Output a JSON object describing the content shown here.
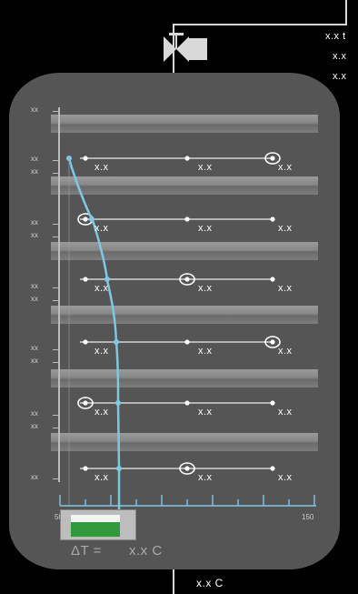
{
  "colors": {
    "vessel": "#555555",
    "curve": "#7ec8e3",
    "pipe": "#d8d8d8",
    "fill_bar": "#2e9a3c"
  },
  "valve": {
    "icon": "control-valve-icon"
  },
  "top_readouts": [
    "x.x t",
    "x.x",
    "x.x"
  ],
  "left_scale": {
    "tick_labels": [
      "xx",
      "xx",
      "xx",
      "xx",
      "xx",
      "xx",
      "xx",
      "xx",
      "xx",
      "xx",
      "xx",
      "xx"
    ]
  },
  "rows": [
    {
      "values": [
        "x.x",
        "x.x",
        "x.x"
      ],
      "marker_position": "right"
    },
    {
      "values": [
        "x.x",
        "x.x",
        "x.x"
      ],
      "marker_position": "left"
    },
    {
      "values": [
        "x.x",
        "x.x",
        "x.x"
      ],
      "marker_position": "middle"
    },
    {
      "values": [
        "x.x",
        "x.x",
        "x.x"
      ],
      "marker_position": "right"
    },
    {
      "values": [
        "x.x",
        "x.x",
        "x.x"
      ],
      "marker_position": "left"
    },
    {
      "values": [
        "x.x",
        "x.x",
        "x.x"
      ],
      "marker_position": "middle"
    }
  ],
  "bottom_axis": {
    "min_label": "50",
    "max_label": "150"
  },
  "delta_t": {
    "label": "ΔT =",
    "value": "x.x C"
  },
  "outlet_readout": "x.x C"
}
